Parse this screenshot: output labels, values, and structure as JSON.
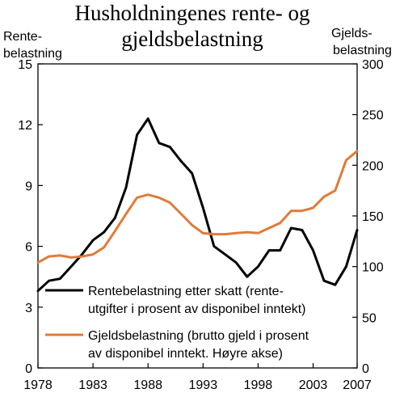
{
  "chart_data": {
    "type": "line",
    "title_line1": "Husholdningenes rente- og",
    "title_line2": "gjeldsbelastning",
    "left_axis_label_line1": "Rente-",
    "left_axis_label_line2": "belastning",
    "right_axis_label_line1": "Gjelds-",
    "right_axis_label_line2": "belastning",
    "x_ticks": [
      1978,
      1983,
      1988,
      1993,
      1998,
      2003,
      2007
    ],
    "x_tick_labels": [
      "1978",
      "1983",
      "1988",
      "1993",
      "1998",
      "2003",
      "2007"
    ],
    "xlim": [
      1978,
      2007
    ],
    "y_left_ticks": [
      0,
      3,
      6,
      9,
      12,
      15
    ],
    "y_left_tick_labels": [
      "0",
      "3",
      "6",
      "9",
      "12",
      "15"
    ],
    "ylim_left": [
      0,
      15
    ],
    "y_right_ticks": [
      0,
      50,
      100,
      150,
      200,
      250,
      300
    ],
    "y_right_tick_labels": [
      "0",
      "50",
      "100",
      "150",
      "200",
      "250",
      "300"
    ],
    "ylim_right": [
      0,
      300
    ],
    "x": [
      1978,
      1979,
      1980,
      1981,
      1982,
      1983,
      1984,
      1985,
      1986,
      1987,
      1988,
      1989,
      1990,
      1991,
      1992,
      1993,
      1994,
      1995,
      1996,
      1997,
      1998,
      1999,
      2000,
      2001,
      2002,
      2003,
      2004,
      2005,
      2006,
      2007
    ],
    "series": [
      {
        "name": "Rentebelastning etter skatt (rente-utgifter i prosent av disponibel inntekt)",
        "legend_line1": "Rentebelastning etter skatt (rente-",
        "legend_line2": "utgifter i prosent av disponibel inntekt)",
        "axis": "left",
        "color": "#000000",
        "values": [
          3.8,
          4.3,
          4.4,
          5.0,
          5.6,
          6.3,
          6.7,
          7.4,
          8.9,
          11.5,
          12.3,
          11.1,
          10.9,
          10.2,
          9.6,
          7.9,
          6.0,
          5.6,
          5.2,
          4.5,
          5.0,
          5.8,
          5.8,
          6.9,
          6.8,
          5.8,
          4.3,
          4.1,
          5.0,
          6.8
        ]
      },
      {
        "name": "Gjeldsbelastning (brutto gjeld i prosent av disponibel inntekt. Høyre akse)",
        "legend_line1": "Gjeldsbelastning (brutto gjeld i prosent",
        "legend_line2": "av disponibel inntekt. Høyre akse)",
        "axis": "right",
        "color": "#E07B39",
        "values": [
          104,
          110,
          111,
          109,
          110,
          112,
          119,
          135,
          152,
          168,
          171,
          168,
          163,
          152,
          141,
          133,
          132,
          132,
          133,
          134,
          133,
          138,
          143,
          155,
          155,
          158,
          169,
          175,
          205,
          214
        ]
      }
    ],
    "grid": false,
    "legend_position": "bottom-right"
  }
}
